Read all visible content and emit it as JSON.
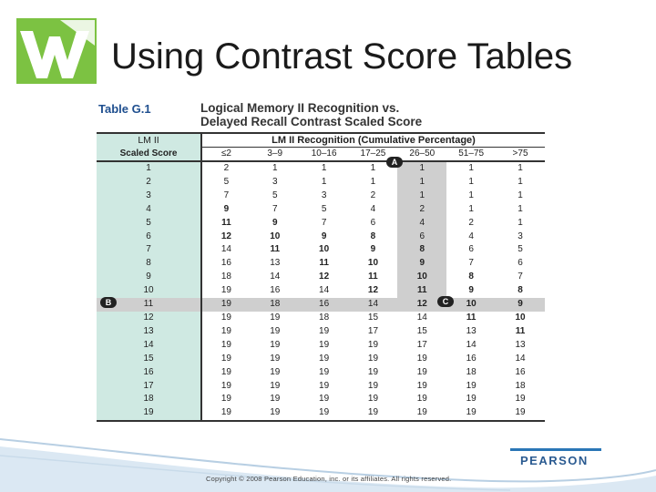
{
  "slide": {
    "title": "Using Contrast Score Tables",
    "copyright": "Copyright © 2008 Pearson Education, inc. or its affiliates. All rights reserved.",
    "brand": "PEARSON"
  },
  "table": {
    "caption": "Table G.1",
    "title_line1": "Logical Memory II Recognition vs.",
    "title_line2": "Delayed Recall Contrast Scaled Score",
    "lm_header_line1": "LM II",
    "lm_header_line2": "Scaled Score",
    "recognition_header": "LM II Recognition (Cumulative Percentage)",
    "columns": [
      "≤2",
      "3–9",
      "10–16",
      "17–25",
      "26–50",
      "51–75",
      ">75"
    ],
    "rows": [
      {
        "lm": "1",
        "vals": [
          "2",
          "1",
          "1",
          "1",
          "1",
          "1",
          "1"
        ]
      },
      {
        "lm": "2",
        "vals": [
          "5",
          "3",
          "1",
          "1",
          "1",
          "1",
          "1"
        ]
      },
      {
        "lm": "3",
        "vals": [
          "7",
          "5",
          "3",
          "2",
          "1",
          "1",
          "1"
        ]
      },
      {
        "lm": "4",
        "vals": [
          "9",
          "7",
          "5",
          "4",
          "2",
          "1",
          "1"
        ]
      },
      {
        "lm": "5",
        "vals": [
          "11",
          "9",
          "7",
          "6",
          "4",
          "2",
          "1"
        ]
      },
      {
        "lm": "6",
        "vals": [
          "12",
          "10",
          "9",
          "8",
          "6",
          "4",
          "3"
        ]
      },
      {
        "lm": "7",
        "vals": [
          "14",
          "11",
          "10",
          "9",
          "8",
          "6",
          "5"
        ]
      },
      {
        "lm": "8",
        "vals": [
          "16",
          "13",
          "11",
          "10",
          "9",
          "7",
          "6"
        ]
      },
      {
        "lm": "9",
        "vals": [
          "18",
          "14",
          "12",
          "11",
          "10",
          "8",
          "7"
        ]
      },
      {
        "lm": "10",
        "vals": [
          "19",
          "16",
          "14",
          "12",
          "11",
          "9",
          "8"
        ]
      },
      {
        "lm": "11",
        "vals": [
          "19",
          "18",
          "16",
          "14",
          "12",
          "10",
          "9"
        ]
      },
      {
        "lm": "12",
        "vals": [
          "19",
          "19",
          "18",
          "15",
          "14",
          "11",
          "10"
        ]
      },
      {
        "lm": "13",
        "vals": [
          "19",
          "19",
          "19",
          "17",
          "15",
          "13",
          "11"
        ]
      },
      {
        "lm": "14",
        "vals": [
          "19",
          "19",
          "19",
          "19",
          "17",
          "14",
          "13"
        ]
      },
      {
        "lm": "15",
        "vals": [
          "19",
          "19",
          "19",
          "19",
          "19",
          "16",
          "14"
        ]
      },
      {
        "lm": "16",
        "vals": [
          "19",
          "19",
          "19",
          "19",
          "19",
          "18",
          "16"
        ]
      },
      {
        "lm": "17",
        "vals": [
          "19",
          "19",
          "19",
          "19",
          "19",
          "19",
          "18"
        ]
      },
      {
        "lm": "18",
        "vals": [
          "19",
          "19",
          "19",
          "19",
          "19",
          "19",
          "19"
        ]
      },
      {
        "lm": "19",
        "vals": [
          "19",
          "19",
          "19",
          "19",
          "19",
          "19",
          "19"
        ]
      }
    ],
    "highlight_row": "11",
    "highlight_column": "26–50",
    "markers": {
      "a": "A",
      "b": "B",
      "c": "C"
    }
  },
  "colors": {
    "lm_column_bg": "#cfe9e2",
    "highlight_gray": "#cfcfcf",
    "caption_blue": "#1f4f8f",
    "logo_green": "#7cc242",
    "brand_blue": "#2a5a90"
  },
  "icons": {
    "logo": "pearson-w-logo-icon"
  }
}
